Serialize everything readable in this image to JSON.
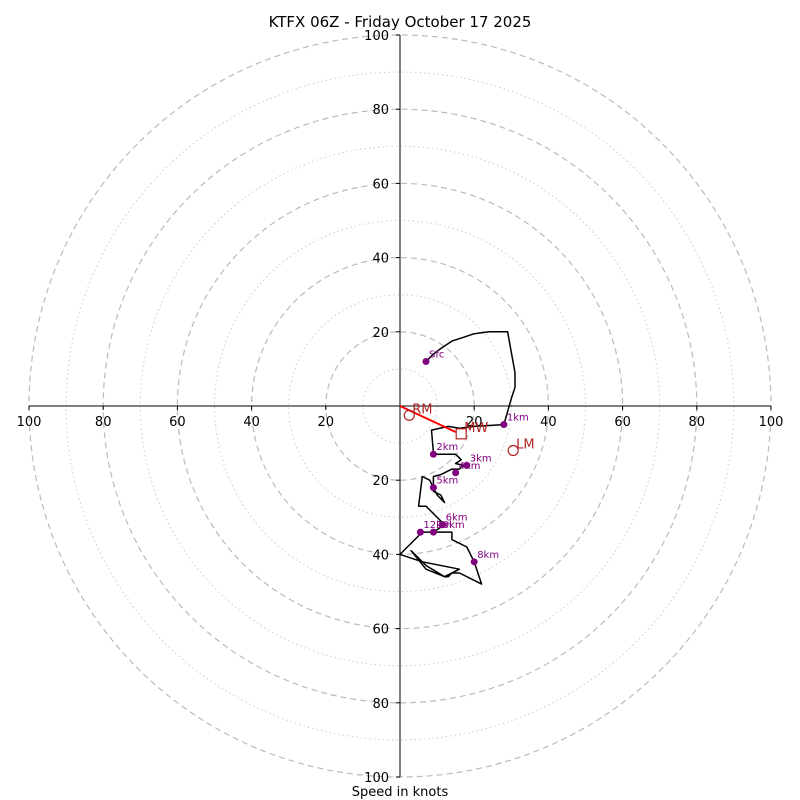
{
  "chart_data": {
    "type": "line",
    "subtype": "hodograph",
    "title": "KTFX 06Z - Friday October 17 2025",
    "xlabel": "Speed in knots",
    "range": [
      -100,
      100
    ],
    "rings_major": [
      20,
      40,
      60,
      80,
      100
    ],
    "rings_minor": [
      10,
      30,
      50,
      70,
      90
    ],
    "x_tick_labels": [
      "100",
      "80",
      "60",
      "40",
      "20",
      "20",
      "40",
      "60",
      "80",
      "100"
    ],
    "x_tick_values": [
      -100,
      -80,
      -60,
      -40,
      -20,
      20,
      40,
      60,
      80,
      100
    ],
    "y_tick_labels": [
      "100",
      "80",
      "60",
      "40",
      "20",
      "20",
      "40",
      "60",
      "80",
      "100"
    ],
    "y_tick_values": [
      100,
      80,
      60,
      40,
      20,
      -20,
      -40,
      -60,
      -80,
      -100
    ],
    "series": [
      {
        "name": "wind profile",
        "color": "#000000",
        "points": [
          [
            7,
            12
          ],
          [
            9,
            14
          ],
          [
            11,
            15.5
          ],
          [
            14,
            17.5
          ],
          [
            17,
            18.5
          ],
          [
            20,
            19.5
          ],
          [
            24,
            20
          ],
          [
            29,
            20
          ],
          [
            31,
            9
          ],
          [
            31,
            5
          ],
          [
            30,
            2
          ],
          [
            28,
            -5
          ],
          [
            20,
            -5.5
          ],
          [
            16,
            -6
          ],
          [
            13,
            -5.5
          ],
          [
            8.5,
            -6.5
          ],
          [
            9,
            -12.5
          ],
          [
            10,
            -13
          ],
          [
            15,
            -13
          ],
          [
            16.5,
            -14.5
          ],
          [
            15,
            -15.5
          ],
          [
            17,
            -16
          ],
          [
            16,
            -17
          ],
          [
            14,
            -17
          ],
          [
            12,
            -18
          ],
          [
            11,
            -18.5
          ],
          [
            9,
            -19
          ],
          [
            9,
            -23
          ],
          [
            11,
            -24
          ],
          [
            12,
            -26
          ],
          [
            10,
            -24
          ],
          [
            8,
            -20
          ],
          [
            6,
            -19
          ],
          [
            5,
            -27
          ],
          [
            7,
            -27
          ],
          [
            8,
            -28
          ],
          [
            12,
            -32
          ],
          [
            9,
            -34
          ],
          [
            14,
            -34
          ],
          [
            14,
            -36
          ],
          [
            18,
            -38
          ],
          [
            20,
            -42
          ],
          [
            22,
            -48
          ],
          [
            16,
            -45
          ],
          [
            14,
            -45
          ],
          [
            13,
            -46
          ],
          [
            12,
            -46
          ],
          [
            7,
            -44
          ],
          [
            3,
            -39
          ],
          [
            7,
            -43
          ],
          [
            12,
            -46
          ],
          [
            16,
            -44
          ],
          [
            6,
            -42
          ],
          [
            0,
            -40
          ],
          [
            6,
            -34
          ],
          [
            9,
            -34
          ]
        ]
      },
      {
        "name": "storm motion vector",
        "color": "#ff0000",
        "points": [
          [
            0,
            0
          ],
          [
            15,
            -7
          ]
        ]
      }
    ],
    "height_markers": [
      {
        "label": "Sfc",
        "x": 7,
        "y": 12
      },
      {
        "label": "1km",
        "x": 28,
        "y": -5
      },
      {
        "label": "2km",
        "x": 9,
        "y": -13
      },
      {
        "label": "3km",
        "x": 18,
        "y": -16
      },
      {
        "label": "4km",
        "x": 15,
        "y": -18
      },
      {
        "label": "5km",
        "x": 9,
        "y": -22
      },
      {
        "label": "6km",
        "x": 11.5,
        "y": -32
      },
      {
        "label": "8km",
        "x": 20,
        "y": -42
      },
      {
        "label": "10km",
        "x": 9,
        "y": -34
      },
      {
        "label": "12km",
        "x": 5.5,
        "y": -34
      }
    ],
    "storm_markers": [
      {
        "label": "RM",
        "x": 2.5,
        "y": -2.5,
        "shape": "circle"
      },
      {
        "label": "MW",
        "x": 16.5,
        "y": -7.5,
        "shape": "square"
      },
      {
        "label": "LM",
        "x": 30.5,
        "y": -12,
        "shape": "circle"
      }
    ],
    "colors": {
      "marker": "#800080",
      "storm": "#b22222",
      "ring": "#bbbbbb",
      "axis": "#000000"
    }
  }
}
